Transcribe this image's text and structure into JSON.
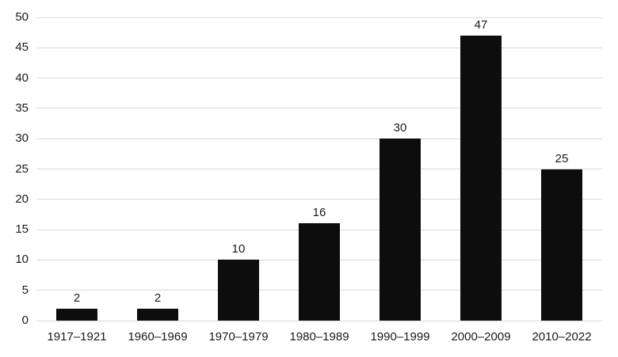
{
  "chart_data": {
    "type": "bar",
    "title": "",
    "xlabel": "",
    "ylabel": "",
    "categories": [
      "1917–1921",
      "1960–1969",
      "1970–1979",
      "1980–1989",
      "1990–1999",
      "2000–2009",
      "2010–2022"
    ],
    "values": [
      2,
      2,
      10,
      16,
      30,
      47,
      25
    ],
    "data_labels": [
      "2",
      "2",
      "10",
      "16",
      "30",
      "47",
      "25"
    ],
    "ylim": [
      0,
      50
    ],
    "yticks": [
      0,
      5,
      10,
      15,
      20,
      25,
      30,
      35,
      40,
      45,
      50
    ],
    "grid": true,
    "legend": false,
    "colors": {
      "bar": "#0d0d0d",
      "gridline": "#d9d9d9",
      "text": "#1a1a1a",
      "background": "#ffffff"
    }
  }
}
